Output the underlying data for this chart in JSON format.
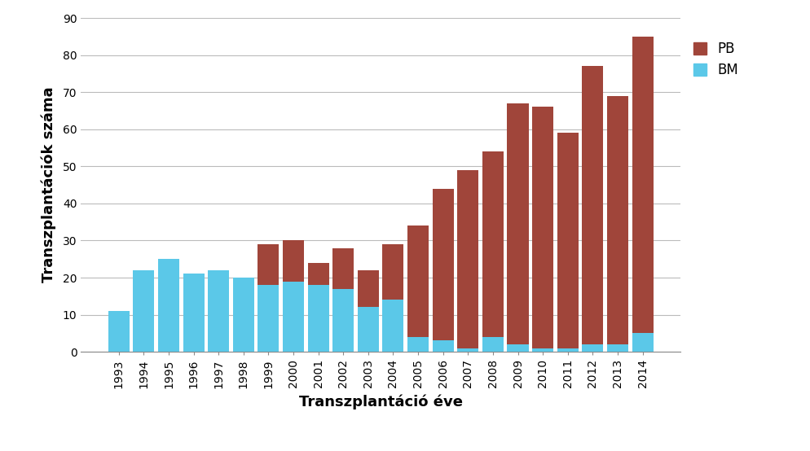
{
  "years": [
    1993,
    1994,
    1995,
    1996,
    1997,
    1998,
    1999,
    2000,
    2001,
    2002,
    2003,
    2004,
    2005,
    2006,
    2007,
    2008,
    2009,
    2010,
    2011,
    2012,
    2013,
    2014
  ],
  "BM_values": [
    11,
    22,
    25,
    21,
    22,
    20,
    18,
    19,
    18,
    17,
    12,
    14,
    4,
    3,
    1,
    4,
    2,
    1,
    1,
    2,
    2,
    5
  ],
  "PB_values": [
    0,
    0,
    0,
    0,
    0,
    0,
    11,
    11,
    6,
    11,
    10,
    15,
    30,
    41,
    48,
    50,
    65,
    65,
    58,
    75,
    67,
    80
  ],
  "color_BM": "#5BC8E8",
  "color_PB": "#A0453A",
  "ylabel": "Transzplantációk száma",
  "xlabel": "Transzplantáció éve",
  "ylim": [
    0,
    90
  ],
  "yticks": [
    0,
    10,
    20,
    30,
    40,
    50,
    60,
    70,
    80,
    90
  ],
  "legend_labels": [
    "PB",
    "BM"
  ],
  "background_color": "#FFFFFF",
  "grid_color": "#BBBBBB",
  "bar_width": 0.85,
  "xlabel_fontsize": 13,
  "ylabel_fontsize": 13,
  "tick_fontsize": 10,
  "legend_fontsize": 12
}
